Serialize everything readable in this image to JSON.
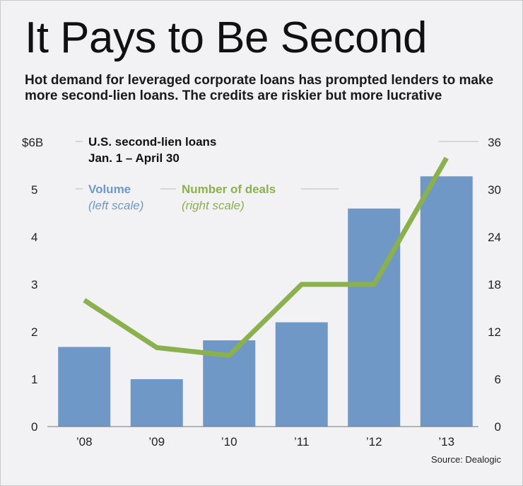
{
  "title": "It Pays to Be Second",
  "subtitle": "Hot demand for leveraged corporate loans has prompted lenders to make more second-lien loans. The credits are riskier but more lucrative",
  "source": "Source: Dealogic",
  "colors": {
    "bar": "#7098c6",
    "line": "#8bb04e",
    "text": "#1a1a1a"
  },
  "chart_data": {
    "type": "bar",
    "chart_title_line1": "U.S. second-lien loans",
    "chart_title_line2": "Jan. 1 – April 30",
    "categories": [
      "’08",
      "’09",
      "’10",
      "’11",
      "’12",
      "’13"
    ],
    "series": [
      {
        "name": "Volume",
        "scale_note": "(left scale)",
        "type": "bar",
        "axis": "left",
        "values": [
          1.68,
          1.0,
          1.82,
          2.2,
          4.6,
          5.28
        ]
      },
      {
        "name": "Number of deals",
        "scale_note": "(right scale)",
        "type": "line",
        "axis": "right",
        "values": [
          16,
          10,
          9,
          18,
          18,
          34
        ]
      }
    ],
    "left_axis": {
      "ylim": [
        0,
        6
      ],
      "ticks": [
        "0",
        "1",
        "2",
        "3",
        "4",
        "5",
        "$6B"
      ]
    },
    "right_axis": {
      "ylim": [
        0,
        36
      ],
      "ticks": [
        "0",
        "6",
        "12",
        "18",
        "24",
        "30",
        "36"
      ]
    },
    "grid": false
  }
}
